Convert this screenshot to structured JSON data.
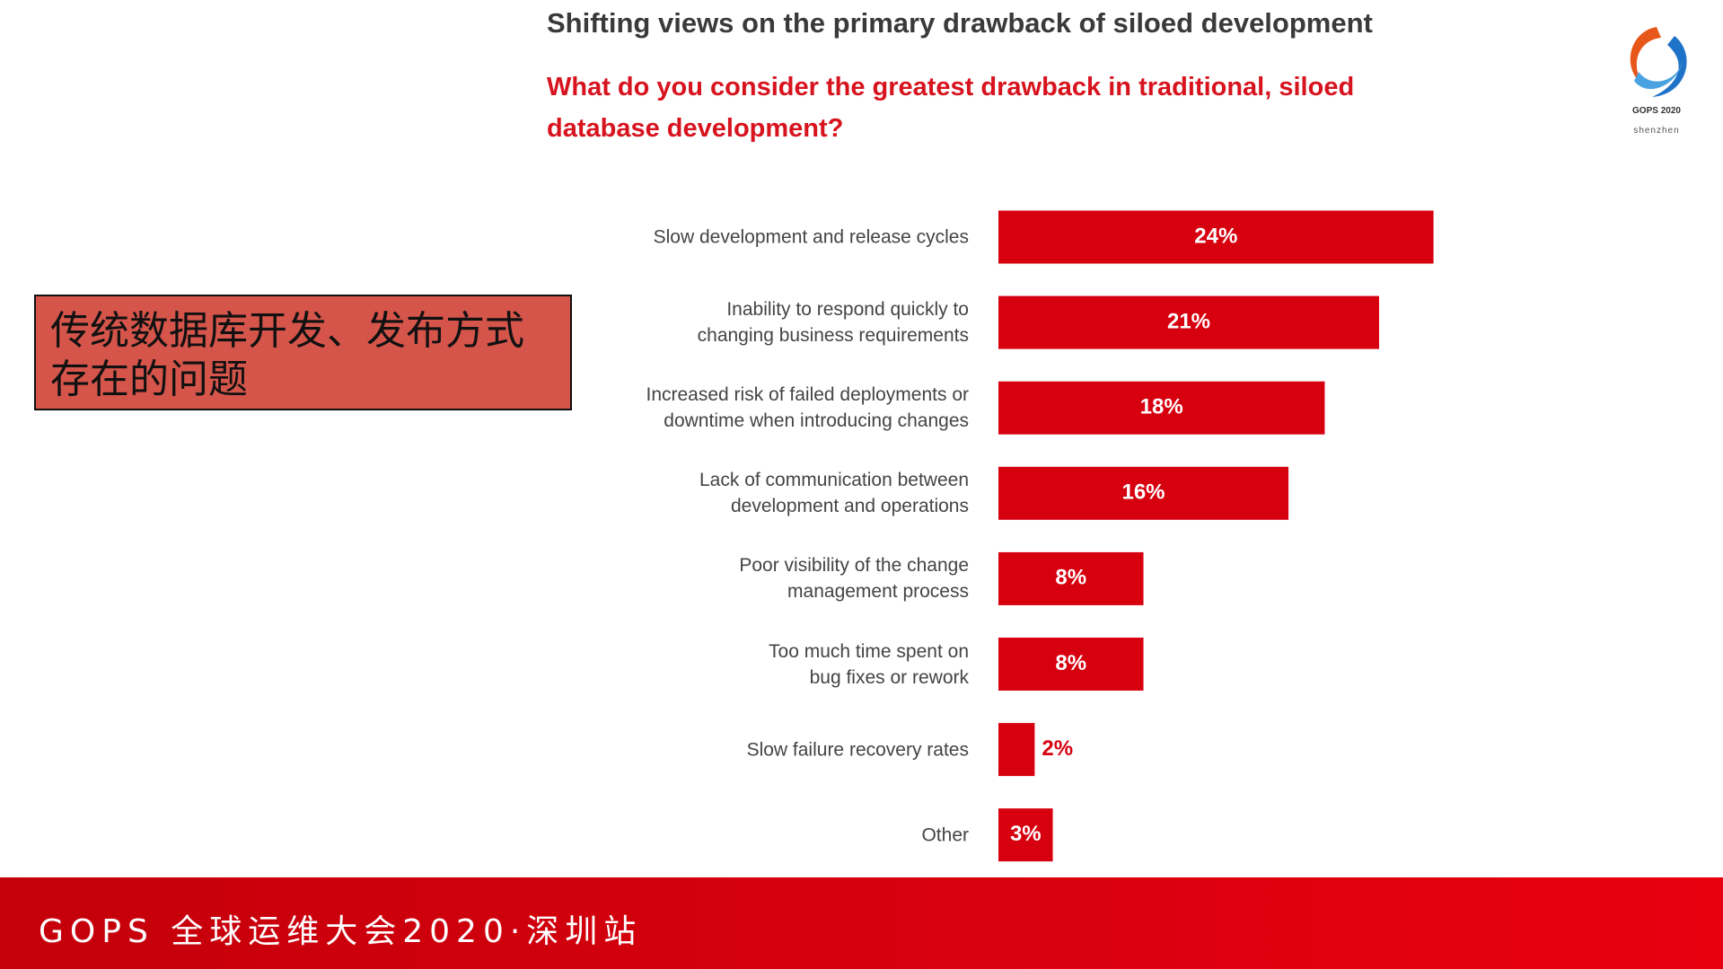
{
  "chart_data": {
    "type": "bar",
    "orientation": "horizontal",
    "title": "Shifting views on the primary drawback of siloed development",
    "subtitle": "What do you consider the greatest drawback in traditional, siloed\ndatabase development?",
    "categories": [
      "Slow development and release cycles",
      "Inability to respond quickly to\nchanging business requirements",
      "Increased risk of failed deployments or\ndowntime when introducing changes",
      "Lack of communication between\ndevelopment and operations",
      "Poor visibility of the change\nmanagement process",
      "Too much time spent on\nbug fixes or rework",
      "Slow failure recovery rates",
      "Other"
    ],
    "values": [
      24,
      21,
      18,
      16,
      8,
      8,
      2,
      3
    ],
    "value_labels": [
      "24%",
      "21%",
      "18%",
      "16%",
      "8%",
      "8%",
      "2%",
      "3%"
    ],
    "color": "#d7000f"
  },
  "callout": "传统数据库开发、发布方式\n存在的问题",
  "footer": "GOPS 全球运维大会2020·深圳站",
  "logo": {
    "name": "GOPS 2020",
    "city": "shenzhen"
  }
}
